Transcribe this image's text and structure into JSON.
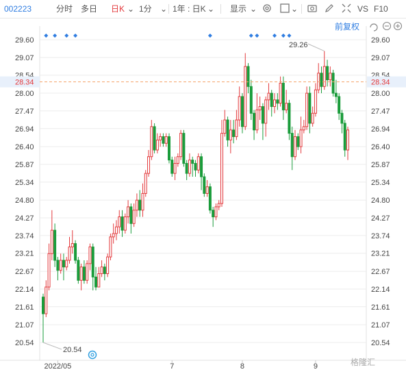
{
  "toolbar": {
    "code": "002223",
    "tabs": [
      "分时",
      "多日",
      "日K",
      "1分",
      "1年 : 日K"
    ],
    "active_tab": "日K",
    "show_label": "显示",
    "vs_label": "VS",
    "f10_label": "F10",
    "adjust_label": "前复权"
  },
  "chart_data": {
    "type": "candlestick",
    "y_ticks": [
      29.6,
      29.07,
      28.54,
      28.0,
      27.47,
      26.94,
      26.4,
      25.87,
      25.34,
      24.8,
      24.27,
      23.74,
      23.21,
      22.67,
      22.14,
      21.61,
      21.07,
      20.54
    ],
    "ylim": [
      20.54,
      29.6
    ],
    "x_labels": [
      "2022/05",
      "7",
      "8",
      "9"
    ],
    "current_price": "28.34",
    "max_label": "29.26",
    "min_label": "20.54",
    "candles": [
      [
        21.9,
        21.4,
        22.0,
        20.54
      ],
      [
        21.4,
        22.2,
        22.4,
        21.3
      ],
      [
        22.2,
        23.2,
        23.5,
        22.1
      ],
      [
        23.2,
        23.9,
        24.5,
        23.0
      ],
      [
        23.9,
        23.0,
        24.1,
        22.8
      ],
      [
        23.0,
        22.7,
        23.1,
        22.4
      ],
      [
        22.7,
        23.0,
        23.2,
        22.6
      ],
      [
        23.0,
        22.8,
        23.2,
        22.4
      ],
      [
        22.8,
        23.0,
        23.1,
        22.7
      ],
      [
        23.0,
        23.4,
        23.7,
        22.9
      ],
      [
        23.4,
        23.5,
        23.9,
        23.2
      ],
      [
        23.5,
        23.0,
        23.6,
        22.9
      ],
      [
        23.0,
        22.4,
        23.1,
        22.3
      ],
      [
        22.4,
        22.8,
        22.9,
        22.1
      ],
      [
        22.8,
        22.4,
        23.0,
        22.3
      ],
      [
        22.4,
        22.9,
        23.0,
        22.3
      ],
      [
        22.9,
        23.4,
        23.5,
        22.7
      ],
      [
        23.4,
        22.5,
        23.5,
        22.1
      ],
      [
        22.5,
        22.2,
        22.8,
        22.1
      ],
      [
        22.2,
        22.6,
        22.8,
        22.2
      ],
      [
        22.6,
        22.8,
        23.0,
        22.5
      ],
      [
        22.8,
        22.6,
        22.9,
        22.4
      ],
      [
        22.6,
        23.1,
        23.2,
        22.5
      ],
      [
        23.1,
        23.7,
        23.8,
        23.0
      ],
      [
        23.7,
        23.8,
        24.1,
        23.5
      ],
      [
        23.8,
        24.0,
        24.2,
        23.6
      ],
      [
        24.0,
        24.3,
        24.5,
        23.8
      ],
      [
        24.3,
        23.9,
        24.5,
        23.7
      ],
      [
        23.9,
        24.3,
        24.4,
        23.8
      ],
      [
        24.3,
        24.6,
        24.8,
        24.1
      ],
      [
        24.6,
        24.1,
        24.7,
        23.8
      ],
      [
        24.1,
        24.5,
        24.7,
        24.0
      ],
      [
        24.5,
        24.8,
        25.0,
        24.3
      ],
      [
        24.8,
        24.5,
        25.1,
        24.3
      ],
      [
        24.5,
        25.0,
        25.3,
        24.3
      ],
      [
        25.0,
        25.6,
        25.7,
        24.9
      ],
      [
        25.6,
        26.1,
        26.3,
        25.5
      ],
      [
        26.1,
        27.0,
        27.2,
        26.0
      ],
      [
        27.0,
        26.3,
        27.1,
        26.2
      ],
      [
        26.3,
        26.6,
        26.8,
        26.2
      ],
      [
        26.6,
        26.7,
        26.8,
        26.4
      ],
      [
        26.7,
        26.5,
        26.8,
        26.4
      ],
      [
        26.5,
        26.7,
        26.8,
        26.4
      ],
      [
        26.7,
        26.0,
        26.8,
        25.9
      ],
      [
        26.0,
        25.6,
        26.1,
        25.5
      ],
      [
        25.6,
        25.9,
        26.1,
        25.4
      ],
      [
        25.9,
        26.1,
        26.2,
        25.8
      ],
      [
        26.1,
        26.8,
        26.9,
        26.0
      ],
      [
        26.8,
        25.9,
        26.9,
        25.8
      ],
      [
        25.9,
        25.6,
        26.0,
        25.4
      ],
      [
        25.6,
        26.0,
        26.2,
        25.5
      ],
      [
        26.0,
        25.9,
        26.1,
        25.5
      ],
      [
        25.9,
        25.7,
        26.0,
        25.5
      ],
      [
        25.7,
        26.1,
        26.2,
        25.6
      ],
      [
        26.1,
        25.5,
        26.2,
        25.1
      ],
      [
        25.5,
        25.0,
        25.6,
        24.9
      ],
      [
        25.0,
        25.2,
        25.4,
        24.9
      ],
      [
        25.2,
        24.5,
        25.3,
        24.4
      ],
      [
        24.5,
        24.3,
        24.6,
        24.0
      ],
      [
        24.3,
        24.6,
        24.7,
        24.2
      ],
      [
        24.6,
        24.7,
        24.8,
        24.5
      ],
      [
        24.7,
        26.8,
        27.2,
        24.6
      ],
      [
        26.8,
        27.2,
        27.5,
        26.7
      ],
      [
        27.2,
        26.6,
        27.3,
        26.4
      ],
      [
        26.6,
        26.9,
        27.2,
        26.2
      ],
      [
        26.9,
        26.7,
        27.2,
        26.5
      ],
      [
        26.7,
        27.2,
        27.5,
        26.6
      ],
      [
        27.2,
        27.9,
        28.2,
        27.0
      ],
      [
        27.9,
        27.0,
        28.0,
        26.8
      ],
      [
        27.0,
        28.8,
        29.2,
        26.9
      ],
      [
        28.8,
        28.2,
        28.9,
        28.0
      ],
      [
        28.2,
        27.4,
        28.4,
        27.2
      ],
      [
        27.4,
        26.9,
        27.5,
        26.6
      ],
      [
        26.9,
        27.5,
        28.0,
        26.8
      ],
      [
        27.5,
        27.6,
        27.9,
        27.2
      ],
      [
        27.6,
        27.1,
        27.7,
        26.6
      ],
      [
        27.1,
        27.8,
        27.9,
        26.7
      ],
      [
        27.8,
        28.0,
        28.3,
        27.5
      ],
      [
        28.0,
        27.6,
        28.1,
        27.3
      ],
      [
        27.6,
        27.8,
        28.0,
        27.4
      ],
      [
        27.8,
        27.7,
        28.0,
        27.5
      ],
      [
        27.7,
        28.3,
        28.5,
        27.6
      ],
      [
        28.3,
        27.5,
        28.5,
        27.2
      ],
      [
        27.5,
        27.7,
        28.1,
        27.4
      ],
      [
        27.7,
        26.8,
        27.8,
        26.6
      ],
      [
        26.8,
        26.1,
        27.0,
        25.7
      ],
      [
        26.1,
        26.7,
        26.9,
        26.0
      ],
      [
        26.7,
        26.4,
        26.8,
        26.3
      ],
      [
        26.4,
        26.9,
        27.3,
        26.2
      ],
      [
        26.9,
        27.0,
        27.2,
        26.8
      ],
      [
        27.0,
        28.0,
        28.2,
        26.9
      ],
      [
        28.0,
        27.1,
        28.2,
        26.8
      ],
      [
        27.1,
        27.4,
        27.6,
        27.0
      ],
      [
        27.4,
        28.1,
        28.3,
        27.3
      ],
      [
        28.1,
        28.6,
        28.9,
        28.0
      ],
      [
        28.6,
        28.2,
        28.8,
        28.0
      ],
      [
        28.2,
        28.8,
        29.26,
        28.1
      ],
      [
        28.8,
        28.4,
        29.0,
        28.2
      ],
      [
        28.4,
        28.6,
        28.8,
        28.2
      ],
      [
        28.6,
        28.0,
        28.7,
        27.9
      ],
      [
        28.0,
        27.9,
        28.4,
        27.7
      ],
      [
        27.9,
        27.4,
        28.0,
        27.2
      ],
      [
        27.4,
        27.1,
        27.5,
        26.8
      ],
      [
        27.1,
        26.3,
        27.2,
        26.1
      ],
      [
        26.3,
        26.9,
        27.0,
        26.0
      ]
    ],
    "markers_top": [
      1,
      4,
      8,
      11,
      57,
      71,
      73,
      79,
      82,
      84
    ],
    "colors": {
      "up": "#e3393c",
      "down": "#1a9c3b",
      "grid": "#ececec",
      "price_line": "#f5a46a",
      "price_label_bg": "#e8f0fb",
      "price_label_fg": "#e3393c",
      "marker": "#2f7de1"
    }
  },
  "watermark": "格隆汇"
}
